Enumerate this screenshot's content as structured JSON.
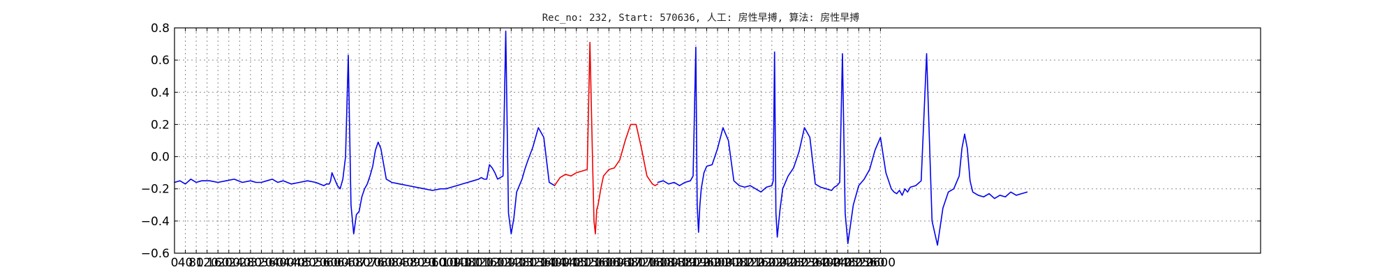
{
  "chart_data": {
    "type": "line",
    "title": "Rec_no: 232, Start: 570636, 人工: 房性早搏, 算法: 房性早搏",
    "xlabel": "",
    "ylabel": "",
    "xlim": [
      0,
      4000
    ],
    "ylim": [
      -0.6,
      0.8
    ],
    "grid": true,
    "x_ticks": [
      0,
      40,
      80,
      120,
      160,
      200,
      240,
      280,
      320,
      360,
      400,
      440,
      480,
      520,
      560,
      600,
      640,
      680,
      720,
      760,
      800,
      840,
      880,
      920,
      960,
      1000,
      1040,
      1080,
      1120,
      1160,
      1200,
      1240,
      1280,
      1320,
      1360,
      1400,
      1440,
      1480,
      1520,
      1560,
      1600,
      1640,
      1680,
      1720,
      1760,
      1800,
      1840,
      1880,
      1920,
      1960,
      2000,
      2040,
      2080,
      2120,
      2160,
      2200,
      2240,
      2280,
      2320,
      2360,
      2400,
      2440,
      2480,
      2520,
      2560,
      2600
    ],
    "x_tick_labels": [
      "0",
      "40",
      "80",
      "120",
      "160",
      "200",
      "240",
      "280",
      "320",
      "360",
      "400",
      "440",
      "480",
      "520",
      "560",
      "600",
      "640",
      "680",
      "720",
      "760",
      "800",
      "840",
      "880",
      "920",
      "960",
      "1000",
      "1040",
      "1080",
      "1120",
      "1160",
      "1200",
      "1240",
      "1280",
      "1320",
      "1360",
      "1400",
      "1440",
      "1480",
      "1520",
      "1560",
      "1600",
      "1640",
      "1680",
      "1720",
      "1760",
      "1800",
      "1840",
      "1880",
      "1920",
      "1960",
      "2000",
      "2040",
      "2080",
      "2120",
      "2160",
      "2200",
      "2240",
      "2280",
      "2320",
      "2360",
      "2400",
      "2440",
      "2480",
      "2520",
      "2560",
      "2600"
    ],
    "y_ticks": [
      -0.6,
      -0.4,
      -0.2,
      0.0,
      0.2,
      0.4,
      0.6,
      0.8
    ],
    "y_tick_labels": [
      "−0.6",
      "−0.4",
      "−0.2",
      "0.0",
      "0.2",
      "0.4",
      "0.6",
      "0.8"
    ],
    "series": [
      {
        "color": "#0000ee",
        "x": [
          0,
          20,
          40,
          60,
          80,
          100,
          130,
          160,
          190,
          220,
          250,
          280,
          300,
          320,
          340,
          360,
          380,
          400,
          430,
          460,
          490,
          520,
          550,
          560,
          570,
          575,
          580,
          585,
          590,
          600,
          610,
          620,
          630,
          640,
          650,
          660,
          670,
          680,
          690,
          700,
          710,
          720,
          730,
          740,
          750,
          760,
          780,
          800,
          830,
          860,
          890,
          920,
          950,
          980,
          1000,
          1020,
          1040,
          1060,
          1080,
          1100,
          1120,
          1130,
          1140,
          1150,
          1160,
          1170,
          1180,
          1190,
          1200,
          1210,
          1220,
          1230,
          1240,
          1250,
          1260,
          1270,
          1280,
          1290,
          1300,
          1320,
          1340,
          1360,
          1380,
          1400
        ],
        "y": [
          -0.16,
          -0.15,
          -0.17,
          -0.14,
          -0.16,
          -0.15,
          -0.15,
          -0.16,
          -0.15,
          -0.14,
          -0.16,
          -0.15,
          -0.16,
          -0.16,
          -0.15,
          -0.14,
          -0.16,
          -0.15,
          -0.17,
          -0.16,
          -0.15,
          -0.16,
          -0.18,
          -0.17,
          -0.17,
          -0.15,
          -0.1,
          -0.12,
          -0.14,
          -0.18,
          -0.2,
          -0.14,
          0.0,
          0.63,
          -0.3,
          -0.48,
          -0.36,
          -0.34,
          -0.25,
          -0.2,
          -0.17,
          -0.12,
          -0.06,
          0.04,
          0.09,
          0.05,
          -0.14,
          -0.16,
          -0.17,
          -0.18,
          -0.19,
          -0.2,
          -0.21,
          -0.2,
          -0.2,
          -0.19,
          -0.18,
          -0.17,
          -0.16,
          -0.15,
          -0.14,
          -0.13,
          -0.14,
          -0.14,
          -0.05,
          -0.07,
          -0.1,
          -0.14,
          -0.13,
          -0.12,
          0.78,
          -0.35,
          -0.48,
          -0.38,
          -0.22,
          -0.18,
          -0.14,
          -0.08,
          -0.03,
          0.06,
          0.18,
          0.12,
          -0.16,
          -0.18
        ]
      },
      {
        "color": "#ee0000",
        "x": [
          1400,
          1420,
          1440,
          1460,
          1480,
          1500,
          1520,
          1530,
          1540,
          1545,
          1550,
          1555,
          1560,
          1570,
          1580,
          1600,
          1620,
          1640,
          1660,
          1680,
          1700,
          1720,
          1740,
          1760,
          1770,
          1780
        ],
        "y": [
          -0.18,
          -0.13,
          -0.11,
          -0.12,
          -0.1,
          -0.09,
          -0.08,
          0.71,
          -0.05,
          -0.4,
          -0.48,
          -0.33,
          -0.3,
          -0.2,
          -0.12,
          -0.08,
          -0.07,
          -0.02,
          0.1,
          0.2,
          0.2,
          0.05,
          -0.12,
          -0.17,
          -0.18,
          -0.17
        ]
      },
      {
        "color": "#0000ee",
        "x": [
          1780,
          1800,
          1820,
          1840,
          1860,
          1880,
          1900,
          1910,
          1920,
          1925,
          1930,
          1935,
          1940,
          1950,
          1960,
          1980,
          2000,
          2020,
          2040,
          2060,
          2080,
          2100,
          2120,
          2140,
          2160,
          2180,
          2200,
          2205,
          2210,
          2215,
          2220,
          2230,
          2240,
          2260,
          2280,
          2300,
          2320,
          2340,
          2360,
          2380,
          2400,
          2420,
          2430,
          2440,
          2450,
          2460,
          2470,
          2480,
          2500,
          2520,
          2540,
          2560,
          2580,
          2600,
          2620,
          2640,
          2650,
          2660,
          2670,
          2680,
          2690,
          2700,
          2710,
          2730,
          2750,
          2770,
          2790,
          2810,
          2830,
          2850,
          2870,
          2880,
          2890,
          2900,
          2910,
          2920,
          2930,
          2940,
          2960,
          2980,
          3000,
          3020,
          3040,
          3060,
          3080,
          3100,
          3120,
          3140
        ],
        "y": [
          -0.16,
          -0.15,
          -0.17,
          -0.16,
          -0.18,
          -0.16,
          -0.15,
          -0.12,
          0.68,
          -0.3,
          -0.47,
          -0.3,
          -0.2,
          -0.1,
          -0.06,
          -0.05,
          0.05,
          0.18,
          0.1,
          -0.15,
          -0.18,
          -0.19,
          -0.18,
          -0.2,
          -0.22,
          -0.19,
          -0.18,
          -0.15,
          0.65,
          -0.35,
          -0.5,
          -0.33,
          -0.2,
          -0.12,
          -0.07,
          0.03,
          0.18,
          0.12,
          -0.17,
          -0.19,
          -0.2,
          -0.21,
          -0.19,
          -0.18,
          -0.16,
          0.64,
          -0.35,
          -0.54,
          -0.3,
          -0.18,
          -0.14,
          -0.08,
          0.04,
          0.12,
          -0.1,
          -0.2,
          -0.22,
          -0.23,
          -0.21,
          -0.24,
          -0.2,
          -0.22,
          -0.19,
          -0.18,
          -0.15,
          0.64,
          -0.4,
          -0.55,
          -0.32,
          -0.22,
          -0.2,
          -0.16,
          -0.12,
          0.05,
          0.14,
          0.05,
          -0.15,
          -0.22,
          -0.24,
          -0.25,
          -0.23,
          -0.26,
          -0.24,
          -0.25,
          -0.22,
          -0.24,
          -0.23,
          -0.22
        ]
      }
    ]
  }
}
